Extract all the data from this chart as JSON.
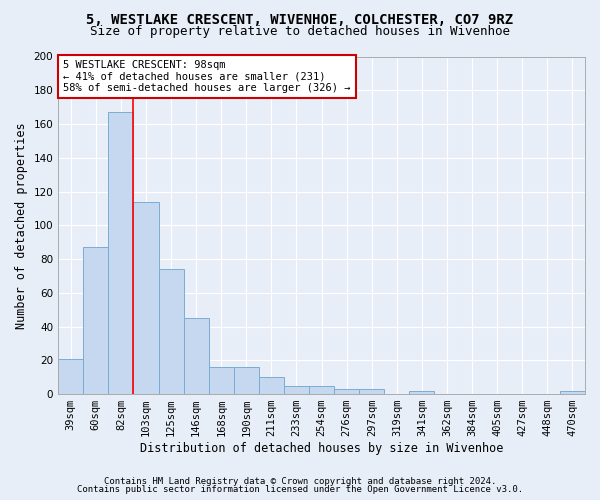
{
  "title": "5, WESTLAKE CRESCENT, WIVENHOE, COLCHESTER, CO7 9RZ",
  "subtitle": "Size of property relative to detached houses in Wivenhoe",
  "xlabel": "Distribution of detached houses by size in Wivenhoe",
  "ylabel": "Number of detached properties",
  "categories": [
    "39sqm",
    "60sqm",
    "82sqm",
    "103sqm",
    "125sqm",
    "146sqm",
    "168sqm",
    "190sqm",
    "211sqm",
    "233sqm",
    "254sqm",
    "276sqm",
    "297sqm",
    "319sqm",
    "341sqm",
    "362sqm",
    "384sqm",
    "405sqm",
    "427sqm",
    "448sqm",
    "470sqm"
  ],
  "values": [
    21,
    87,
    167,
    114,
    74,
    45,
    16,
    16,
    10,
    5,
    5,
    3,
    3,
    0,
    2,
    0,
    0,
    0,
    0,
    0,
    2
  ],
  "bar_color": "#c5d8f0",
  "bar_edge_color": "#7aadd4",
  "bar_width": 1.0,
  "red_line_x": 2.5,
  "annotation_text": "5 WESTLAKE CRESCENT: 98sqm\n← 41% of detached houses are smaller (231)\n58% of semi-detached houses are larger (326) →",
  "annotation_box_color": "#ffffff",
  "annotation_box_edge": "#cc0000",
  "ylim": [
    0,
    200
  ],
  "yticks": [
    0,
    20,
    40,
    60,
    80,
    100,
    120,
    140,
    160,
    180,
    200
  ],
  "footer_line1": "Contains HM Land Registry data © Crown copyright and database right 2024.",
  "footer_line2": "Contains public sector information licensed under the Open Government Licence v3.0.",
  "background_color": "#e8eef8",
  "grid_color": "#ffffff",
  "title_fontsize": 10,
  "subtitle_fontsize": 9,
  "xlabel_fontsize": 8.5,
  "ylabel_fontsize": 8.5,
  "footer_fontsize": 6.5,
  "tick_fontsize": 7.5,
  "annotation_fontsize": 7.5
}
